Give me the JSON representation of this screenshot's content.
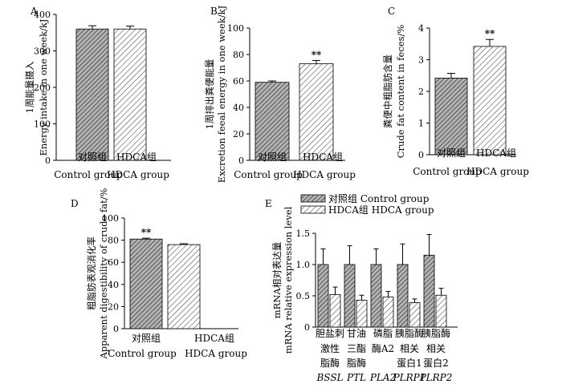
{
  "chart_data": [
    {
      "type": "bar",
      "panel": "A",
      "ylabel": [
        "1周能量摄入",
        "Energy intake in one week/kJ"
      ],
      "ylim": [
        0,
        400
      ],
      "yticks": [
        0,
        100,
        200,
        300,
        400
      ],
      "categories": [
        [
          "对照组",
          "Control group"
        ],
        [
          "HDCA组",
          "HDCA group"
        ]
      ],
      "values": [
        360,
        360
      ],
      "errors": [
        9,
        8
      ],
      "significance": [
        "",
        ""
      ]
    },
    {
      "type": "bar",
      "panel": "B",
      "ylabel": [
        "1周排出粪便能量",
        "Excretion feeal energy in one week/kJ"
      ],
      "ylim": [
        0,
        100
      ],
      "yticks": [
        0,
        20,
        40,
        60,
        80,
        100
      ],
      "categories": [
        [
          "对照组",
          "Control group"
        ],
        [
          "HDCA组",
          "HDCA group"
        ]
      ],
      "values": [
        59,
        73
      ],
      "errors": [
        1,
        2.5
      ],
      "significance": [
        "",
        "**"
      ]
    },
    {
      "type": "bar",
      "panel": "C",
      "ylabel": [
        "粪便中粗脂肪含量",
        "Crude fat content in feces/%"
      ],
      "ylim": [
        0,
        4
      ],
      "yticks": [
        0,
        1,
        2,
        3,
        4
      ],
      "categories": [
        [
          "对照组",
          "Control group"
        ],
        [
          "HDCA组",
          "HDCA group"
        ]
      ],
      "values": [
        2.42,
        3.42
      ],
      "errors": [
        0.15,
        0.22
      ],
      "significance": [
        "",
        "**"
      ]
    },
    {
      "type": "bar",
      "panel": "D",
      "ylabel": [
        "粗脂肪表观消化率",
        "Apparent digestibility of crude fat/%"
      ],
      "ylim": [
        0,
        100
      ],
      "yticks": [
        0,
        20,
        40,
        60,
        80,
        100
      ],
      "categories": [
        [
          "对照组",
          "Control group"
        ],
        [
          "HDCA组",
          "HDCA group"
        ]
      ],
      "values": [
        81,
        76
      ],
      "errors": [
        0.8,
        0.8
      ],
      "significance": [
        "**",
        ""
      ]
    },
    {
      "type": "bar",
      "panel": "E",
      "ylabel": [
        "mRNA相对表达量",
        "mRNA relative expression level"
      ],
      "ylim": [
        0,
        1.5
      ],
      "yticks": [
        "0",
        "0.5",
        "1.0",
        "1.5"
      ],
      "categories": [
        [
          "胆盐刺",
          "激性",
          "脂酶",
          "BSSL"
        ],
        [
          "甘油",
          "三酯",
          "脂酶",
          "PTL"
        ],
        [
          "磷脂",
          "酶A2",
          "PLA2"
        ],
        [
          "胰脂酶",
          "相关",
          "蛋白1",
          "PLRP1"
        ],
        [
          "胰脂酶",
          "相关",
          "蛋白2",
          "PLRP2"
        ]
      ],
      "series": [
        {
          "name": "对照组 Control group",
          "values": [
            1.0,
            1.0,
            1.0,
            1.0,
            1.15
          ],
          "errors": [
            0.25,
            0.3,
            0.25,
            0.33,
            0.33
          ]
        },
        {
          "name": "HDCA组 HDCA group",
          "values": [
            0.52,
            0.43,
            0.48,
            0.39,
            0.51
          ],
          "errors": [
            0.12,
            0.08,
            0.09,
            0.06,
            0.11
          ]
        }
      ],
      "legend": "top"
    }
  ],
  "colors": {
    "control_fill": "#a9a9a9",
    "hdca_fill": "#ffffff",
    "hatch": "#333333",
    "axis": "#000000"
  }
}
